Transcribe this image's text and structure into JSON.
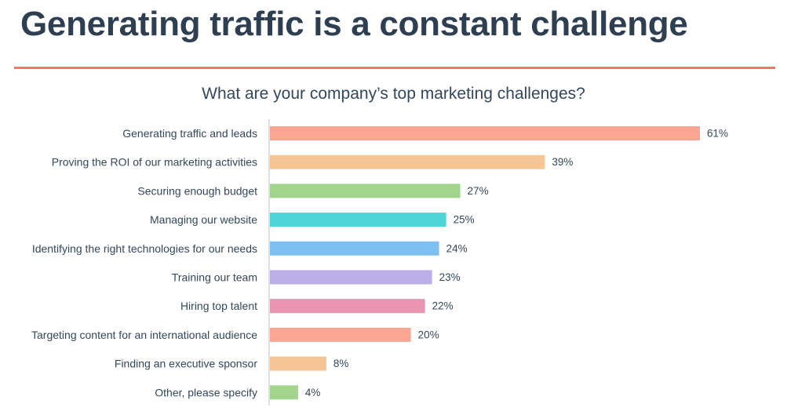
{
  "slide": {
    "title": "Generating traffic is a constant challenge"
  },
  "colors": {
    "title": "#2e3f51",
    "rule": "#f07a5e",
    "axis": "#cfd5db"
  },
  "chart_data": {
    "type": "bar",
    "orientation": "horizontal",
    "title": "What are your company’s top marketing challenges?",
    "xlabel": "",
    "ylabel": "",
    "xlim": [
      0,
      61
    ],
    "grid": false,
    "legend": "none",
    "value_suffix": "%",
    "categories": [
      "Generating traffic and leads",
      "Proving the ROI of our marketing activities",
      "Securing enough budget",
      "Managing our website",
      "Identifying the right technologies for our needs",
      "Training our team",
      "Hiring top talent",
      "Targeting content for an international audience",
      "Finding an executive sponsor",
      "Other, please specify"
    ],
    "values": [
      61,
      39,
      27,
      25,
      24,
      23,
      22,
      20,
      8,
      4
    ],
    "bar_colors": [
      "#fba693",
      "#f5c593",
      "#a2d48d",
      "#4fd4d8",
      "#7ec0f2",
      "#bcafe8",
      "#e994b0",
      "#fba693",
      "#f5c593",
      "#a2d48d"
    ]
  }
}
